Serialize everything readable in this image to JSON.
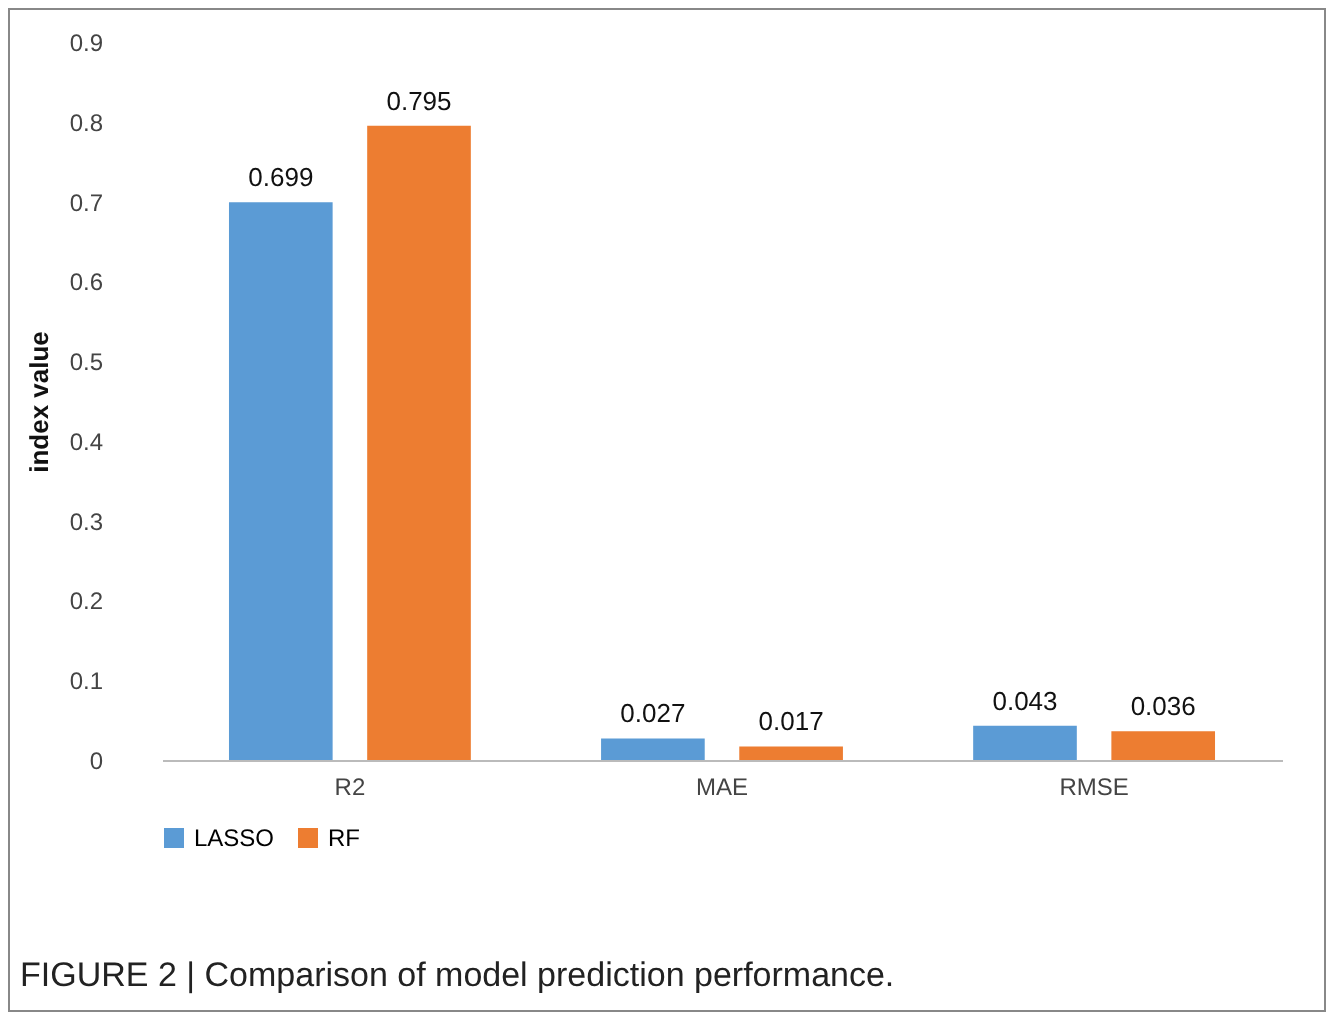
{
  "chart_data": {
    "type": "bar",
    "ylabel": "index value",
    "categories": [
      "R2",
      "MAE",
      "RMSE"
    ],
    "series": [
      {
        "name": "LASSO",
        "color": "#5b9bd5",
        "values": [
          0.699,
          0.027,
          0.043
        ]
      },
      {
        "name": "RF",
        "color": "#ed7d31",
        "values": [
          0.795,
          0.017,
          0.036
        ]
      }
    ],
    "ylim": [
      0,
      0.9
    ],
    "yticks": [
      0,
      0.1,
      0.2,
      0.3,
      0.4,
      0.5,
      0.6,
      0.7,
      0.8,
      0.9
    ],
    "grid": false,
    "legend": "bottom",
    "data_labels": true,
    "annotations": [
      "FIGURE 2 | Comparison of model prediction performance."
    ]
  }
}
